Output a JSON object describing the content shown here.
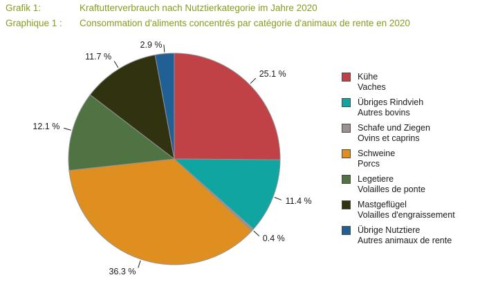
{
  "header": {
    "color": "#8A9A1E",
    "line1": {
      "label": "Grafik 1:",
      "text": "Kraftutterverbrauch nach Nutztierkategorie im Jahre 2020"
    },
    "line2": {
      "label": "Graphique 1 :",
      "text": "Consommation d'aliments concentrés par catégorie d'animaux de rente en 2020"
    }
  },
  "chart_data": {
    "type": "pie",
    "title": "Kraftutterverbrauch nach Nutztierkategorie im Jahre 2020 / Consommation d'aliments concentrés par catégorie d'animaux de rente en 2020",
    "unit": "%",
    "start_angle_deg": 0,
    "direction": "clockwise",
    "legend_position": "right",
    "stroke_color": "#949494",
    "tick_color": "#1a1a1a",
    "slices": [
      {
        "label_de": "Kühe",
        "label_fr": "Vaches",
        "value": 25.1,
        "label": "25.1 %",
        "color": "#C04146"
      },
      {
        "label_de": "Übriges Rindvieh",
        "label_fr": "Autres bovins",
        "value": 11.4,
        "label": "11.4 %",
        "color": "#10A5A0"
      },
      {
        "label_de": "Schafe und Ziegen",
        "label_fr": "Ovins et caprins",
        "value": 0.4,
        "label": "0.4 %",
        "color": "#9B918F"
      },
      {
        "label_de": "Schweine",
        "label_fr": "Porcs",
        "value": 36.3,
        "label": "36.3 %",
        "color": "#DE8F1F"
      },
      {
        "label_de": "Legetiere",
        "label_fr": "Volailles de ponte",
        "value": 12.1,
        "label": "12.1 %",
        "color": "#507344"
      },
      {
        "label_de": "Mastgeflügel",
        "label_fr": "Volailles d'engraissement",
        "value": 11.7,
        "label": "11.7 %",
        "color": "#303210"
      },
      {
        "label_de": "Übrige Nutztiere",
        "label_fr": "Autres animaux de rente",
        "value": 2.9,
        "label": "2.9 %",
        "color": "#216095"
      }
    ]
  }
}
